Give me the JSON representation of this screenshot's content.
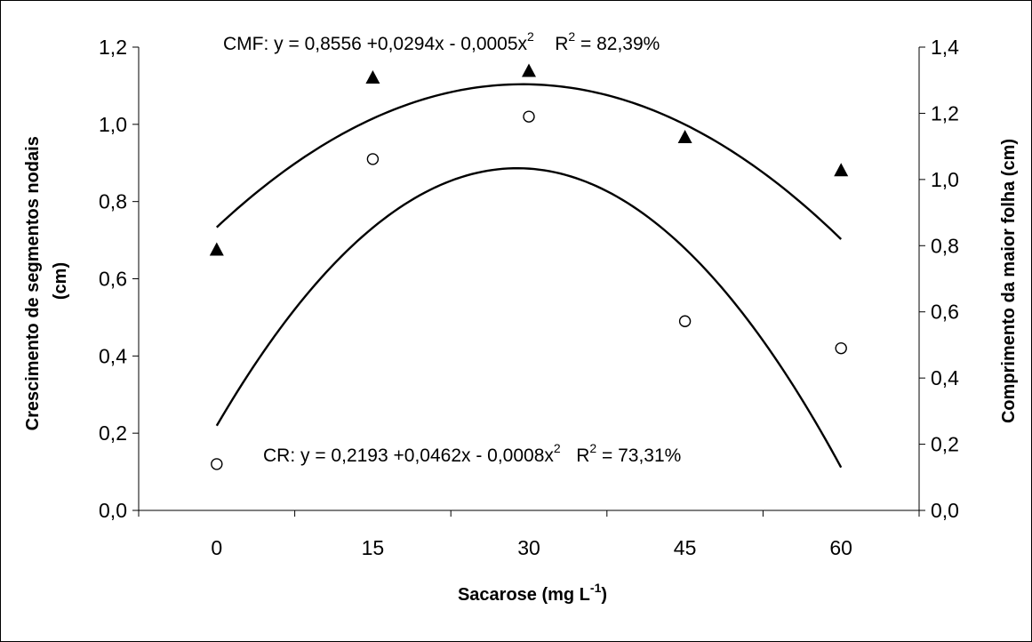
{
  "chart_data": {
    "type": "scatter",
    "title": "",
    "xlabel": "Sacarose (mg L-1)",
    "xlabel_parts": {
      "main": "Sacarose (mg L",
      "sup": "-1",
      "tail": ")"
    },
    "ylabel_left": [
      "Crescimento de segmentos nodais",
      "(cm)"
    ],
    "ylabel_right": "Comprimento da maior folha (cm)",
    "x_categories": [
      0,
      15,
      30,
      45,
      60
    ],
    "x_tick_labels": [
      "0",
      "15",
      "30",
      "45",
      "60"
    ],
    "ylim_left": [
      0,
      1.2
    ],
    "yticks_left": [
      "0,0",
      "0,2",
      "0,4",
      "0,6",
      "0,8",
      "1,0",
      "1,2"
    ],
    "ylim_right": [
      0,
      1.4
    ],
    "yticks_right": [
      "0,0",
      "0,2",
      "0,4",
      "0,6",
      "0,8",
      "1,0",
      "1,2",
      "1,4"
    ],
    "grid": false,
    "series": [
      {
        "name": "CR",
        "marker": "circle-open",
        "axis": "left",
        "x": [
          0,
          15,
          30,
          45,
          60
        ],
        "y": [
          0.12,
          0.91,
          1.02,
          0.49,
          0.42
        ]
      },
      {
        "name": "CMF",
        "marker": "triangle-filled",
        "axis": "right",
        "x": [
          0,
          15,
          30,
          45,
          60
        ],
        "y": [
          0.79,
          1.31,
          1.33,
          1.13,
          1.03
        ]
      }
    ],
    "trendlines": [
      {
        "series": "CMF",
        "axis": "right",
        "coefficients": [
          0.8556,
          0.0294,
          -0.0005
        ],
        "equation_parts": {
          "a": "CMF:  y = 0,8556 +0,0294x - 0,0005x",
          "b": "2",
          "c": "R",
          "d": "2",
          "e": " = 82,39%"
        }
      },
      {
        "series": "CR",
        "axis": "left",
        "coefficients": [
          0.2193,
          0.0462,
          -0.0008
        ],
        "equation_parts": {
          "a": "CR:  y = 0,2193 +0,0462x - 0,0008x",
          "b": "2",
          "c": "R",
          "d": "2",
          "e": " = 73,31%"
        }
      }
    ]
  }
}
